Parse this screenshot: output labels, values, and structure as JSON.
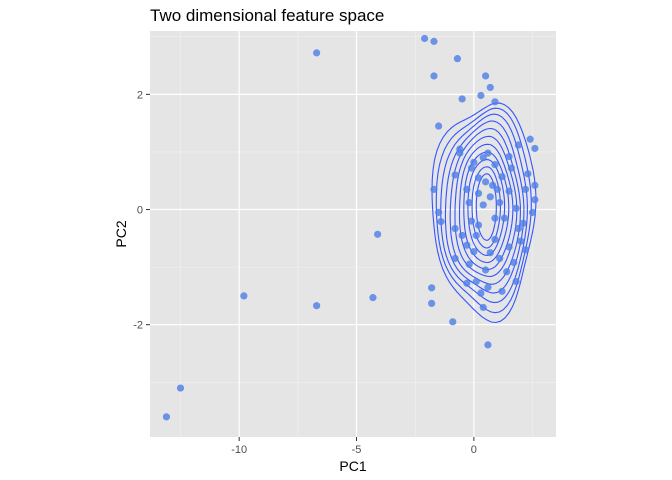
{
  "chart_data": {
    "type": "scatter",
    "title": "Two dimensional feature space",
    "xlabel": "PC1",
    "ylabel": "PC2",
    "xlim": [
      -13.8,
      3.5
    ],
    "ylim": [
      -3.95,
      3.1
    ],
    "x_ticks": [
      -10,
      -5,
      0
    ],
    "x_tick_labels": [
      "-10",
      "-5",
      "0"
    ],
    "y_ticks": [
      -2,
      0,
      2
    ],
    "y_tick_labels": [
      "-2",
      "0",
      "2"
    ],
    "grid": true,
    "legend": "none",
    "colors": {
      "panel": "#e5e5e5",
      "grid_major": "#ffffff",
      "points": "#4f7fe6",
      "contours": "#3355ff"
    },
    "points": [
      [
        -13.1,
        -3.6
      ],
      [
        -12.5,
        -3.1
      ],
      [
        -9.8,
        -1.5
      ],
      [
        -6.7,
        2.72
      ],
      [
        -6.7,
        -1.67
      ],
      [
        -4.3,
        -1.53
      ],
      [
        -4.1,
        -0.43
      ],
      [
        -2.1,
        2.97
      ],
      [
        -1.7,
        2.92
      ],
      [
        -1.7,
        2.32
      ],
      [
        -0.7,
        2.62
      ],
      [
        -1.8,
        -1.36
      ],
      [
        -1.8,
        -1.63
      ],
      [
        -1.5,
        1.45
      ],
      [
        -1.7,
        0.35
      ],
      [
        -1.5,
        -0.05
      ],
      [
        -1.4,
        -0.21
      ],
      [
        -0.9,
        -1.95
      ],
      [
        0.6,
        -2.35
      ],
      [
        0.5,
        2.32
      ],
      [
        0.7,
        2.12
      ],
      [
        -0.5,
        1.92
      ],
      [
        0.3,
        1.98
      ],
      [
        0.9,
        1.87
      ],
      [
        2.4,
        1.22
      ],
      [
        2.6,
        1.06
      ],
      [
        2.6,
        0.42
      ],
      [
        2.6,
        0.17
      ],
      [
        -0.8,
        0.6
      ],
      [
        -0.8,
        -0.85
      ],
      [
        -0.3,
        -0.62
      ],
      [
        -0.8,
        -0.33
      ],
      [
        1.9,
        1.12
      ],
      [
        2.2,
        0.35
      ],
      [
        -0.1,
        0.72
      ],
      [
        0.0,
        0.82
      ],
      [
        0.2,
        0.55
      ],
      [
        -0.3,
        0.35
      ],
      [
        0.5,
        0.48
      ],
      [
        0.8,
        0.42
      ],
      [
        0.4,
        0.08
      ],
      [
        0.2,
        0.28
      ],
      [
        0.7,
        0.22
      ],
      [
        1.1,
        0.12
      ],
      [
        1.3,
        -0.15
      ],
      [
        1.5,
        0.32
      ],
      [
        1.2,
        0.57
      ],
      [
        0.9,
        0.78
      ],
      [
        1.6,
        0.72
      ],
      [
        1.8,
        0.02
      ],
      [
        2.1,
        -0.24
      ],
      [
        0.2,
        -0.27
      ],
      [
        0.9,
        -0.52
      ],
      [
        0.0,
        -0.73
      ],
      [
        -0.2,
        -0.95
      ],
      [
        0.5,
        -1.05
      ],
      [
        1.1,
        -0.85
      ],
      [
        1.5,
        -0.65
      ],
      [
        1.7,
        -0.92
      ],
      [
        2.0,
        -0.55
      ],
      [
        0.1,
        -1.25
      ],
      [
        0.6,
        -1.35
      ],
      [
        1.2,
        -1.42
      ],
      [
        1.8,
        -1.25
      ],
      [
        -0.3,
        -1.28
      ],
      [
        0.4,
        -1.7
      ],
      [
        1.4,
        -1.08
      ],
      [
        0.6,
        0.98
      ],
      [
        -0.6,
        1.05
      ],
      [
        -0.6,
        0.98
      ],
      [
        1.5,
        0.92
      ],
      [
        0.1,
        -0.45
      ],
      [
        0.7,
        -0.75
      ],
      [
        -0.2,
        0.12
      ],
      [
        1.9,
        -0.33
      ],
      [
        2.2,
        -0.7
      ],
      [
        0.3,
        -1.45
      ],
      [
        2.3,
        0.62
      ],
      [
        -0.5,
        -0.45
      ],
      [
        0.9,
        -0.15
      ],
      [
        1.0,
        0.35
      ],
      [
        -0.1,
        -0.2
      ],
      [
        2.5,
        -0.05
      ],
      [
        0.4,
        0.9
      ]
    ],
    "density_contours": {
      "center": [
        0.55,
        0.05
      ],
      "description_levels": 11
    }
  }
}
